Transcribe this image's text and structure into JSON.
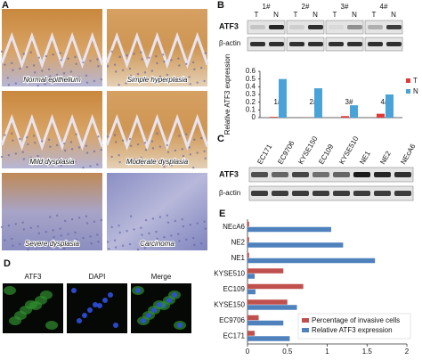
{
  "figure": {
    "panel_a": {
      "letter": "A",
      "images": [
        "Normal epithelium",
        "Simple hyperplasia",
        "Mild dysplasia",
        "Moderate dysplasia",
        "Severe dysplasia",
        "Carcinoma"
      ]
    },
    "panel_b": {
      "letter": "B",
      "samples": [
        "1#",
        "2#",
        "3#",
        "4#"
      ],
      "lane_labels": [
        "T",
        "N"
      ],
      "rows": [
        "ATF3",
        "β-actin"
      ]
    },
    "panel_c": {
      "letter": "C",
      "lanes": [
        "EC171",
        "EC9706",
        "KYSE150",
        "EC109",
        "KYSE510",
        "NE1",
        "NE2",
        "NEcA6"
      ],
      "rows": [
        "ATF3",
        "β-actin"
      ]
    },
    "panel_d": {
      "letter": "D",
      "images": [
        "ATF3",
        "DAPI",
        "Merge"
      ]
    },
    "panel_e": {
      "letter": "E"
    }
  },
  "chart_data": [
    {
      "type": "bar",
      "y_label": "Relative ATF3 expression",
      "categories": [
        "1#",
        "2#",
        "3#",
        "4#"
      ],
      "series": [
        {
          "name": "T",
          "color": "#e03a3a",
          "values": [
            0.01,
            0.0,
            0.02,
            0.05
          ]
        },
        {
          "name": "N",
          "color": "#4aa3d8",
          "values": [
            0.5,
            0.38,
            0.16,
            0.3
          ]
        }
      ],
      "ylim": [
        0,
        0.6
      ],
      "yticks": [
        0,
        0.1,
        0.2,
        0.3,
        0.4,
        0.5,
        0.6
      ],
      "legend": "right"
    },
    {
      "type": "hbar",
      "categories": [
        "NEcA6",
        "NE2",
        "NE1",
        "KYSE510",
        "EC109",
        "KYSE150",
        "EC9706",
        "EC171"
      ],
      "series": [
        {
          "name": "Percentage of invasive cells",
          "color": "#c0504d",
          "values": [
            0.02,
            0.02,
            0.02,
            0.45,
            0.7,
            0.5,
            0.14,
            0.09
          ]
        },
        {
          "name": "Relative ATF3 expression",
          "color": "#4f81bd",
          "values": [
            1.05,
            1.2,
            1.6,
            0.09,
            0.1,
            0.62,
            0.45,
            0.53
          ]
        }
      ],
      "xlim": [
        0,
        2
      ],
      "xticks": [
        0,
        0.5,
        1,
        1.5,
        2
      ],
      "legend": "lower right"
    }
  ]
}
